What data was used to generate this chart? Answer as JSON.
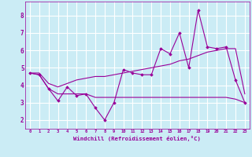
{
  "x": [
    0,
    1,
    2,
    3,
    4,
    5,
    6,
    7,
    8,
    9,
    10,
    11,
    12,
    13,
    14,
    15,
    16,
    17,
    18,
    19,
    20,
    21,
    22,
    23
  ],
  "line1": [
    4.7,
    4.6,
    3.8,
    3.1,
    3.9,
    3.4,
    3.5,
    2.7,
    2.0,
    3.0,
    4.9,
    4.7,
    4.6,
    4.6,
    6.1,
    5.8,
    7.0,
    5.0,
    8.3,
    6.2,
    6.1,
    6.2,
    4.3,
    3.0
  ],
  "line2": [
    4.7,
    4.7,
    4.1,
    3.9,
    4.1,
    4.3,
    4.4,
    4.5,
    4.5,
    4.6,
    4.7,
    4.8,
    4.9,
    5.0,
    5.1,
    5.2,
    5.4,
    5.5,
    5.7,
    5.9,
    6.0,
    6.1,
    6.1,
    3.5
  ],
  "line3": [
    4.7,
    4.6,
    3.8,
    3.5,
    3.5,
    3.5,
    3.5,
    3.3,
    3.3,
    3.3,
    3.3,
    3.3,
    3.3,
    3.3,
    3.3,
    3.3,
    3.3,
    3.3,
    3.3,
    3.3,
    3.3,
    3.3,
    3.2,
    3.0
  ],
  "line_color": "#990099",
  "bg_color": "#cbecf5",
  "grid_color": "#ffffff",
  "xlabel": "Windchill (Refroidissement éolien,°C)",
  "ylim": [
    1.5,
    8.8
  ],
  "xlim": [
    -0.5,
    23.5
  ],
  "yticks": [
    2,
    3,
    4,
    5,
    6,
    7,
    8
  ],
  "xticks": [
    0,
    1,
    2,
    3,
    4,
    5,
    6,
    7,
    8,
    9,
    10,
    11,
    12,
    13,
    14,
    15,
    16,
    17,
    18,
    19,
    20,
    21,
    22,
    23
  ]
}
